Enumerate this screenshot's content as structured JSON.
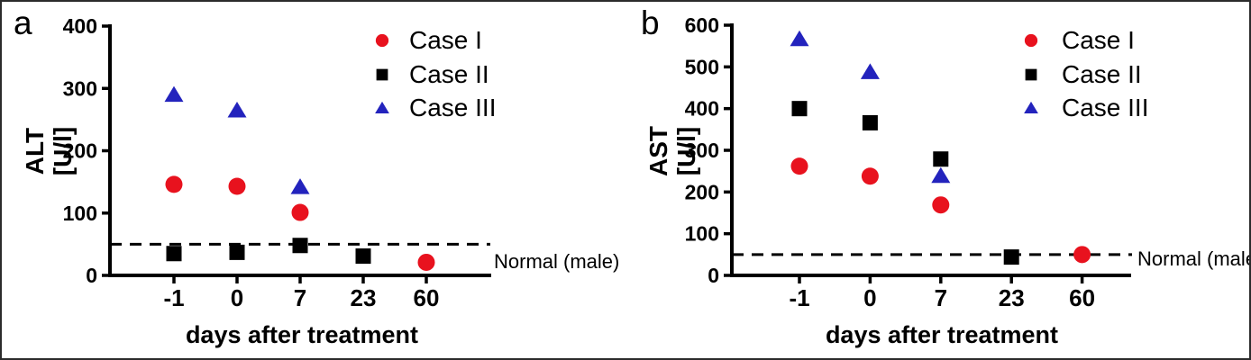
{
  "figure": {
    "background": "#ffffff",
    "border_color": "#2b2b2b"
  },
  "chart_data": [
    {
      "type": "scatter",
      "panel_label": "a",
      "ylabel": "ALT [U/l]",
      "ylabel_lines": [
        "ALT",
        "[U/l]"
      ],
      "xlabel": "days after treatment",
      "ylim": [
        0,
        400
      ],
      "yticks": [
        0,
        100,
        200,
        300,
        400
      ],
      "x_categories": [
        "-1",
        "0",
        "7",
        "23",
        "60"
      ],
      "grid": false,
      "legend_position": "top-right",
      "reference_line": {
        "value": 50,
        "style": "dashed",
        "label": "Normal (male)"
      },
      "series": [
        {
          "name": "Case I",
          "marker": "circle",
          "color": "#e8121e",
          "points": [
            {
              "x": "-1",
              "y": 146
            },
            {
              "x": "0",
              "y": 143
            },
            {
              "x": "7",
              "y": 101
            },
            {
              "x": "60",
              "y": 21
            }
          ]
        },
        {
          "name": "Case II",
          "marker": "square",
          "color": "#000000",
          "points": [
            {
              "x": "-1",
              "y": 35
            },
            {
              "x": "0",
              "y": 37
            },
            {
              "x": "7",
              "y": 48
            },
            {
              "x": "23",
              "y": 31
            }
          ]
        },
        {
          "name": "Case III",
          "marker": "triangle",
          "color": "#2323bd",
          "points": [
            {
              "x": "-1",
              "y": 290
            },
            {
              "x": "0",
              "y": 265
            },
            {
              "x": "7",
              "y": 142
            }
          ]
        }
      ]
    },
    {
      "type": "scatter",
      "panel_label": "b",
      "ylabel": "AST [U/l]",
      "ylabel_lines": [
        "AST",
        "[U/l]"
      ],
      "xlabel": "days after treatment",
      "ylim": [
        0,
        600
      ],
      "yticks": [
        0,
        100,
        200,
        300,
        400,
        500,
        600
      ],
      "x_categories": [
        "-1",
        "0",
        "7",
        "23",
        "60"
      ],
      "grid": false,
      "legend_position": "top-right",
      "reference_line": {
        "value": 50,
        "style": "dashed",
        "label": "Normal (male)"
      },
      "series": [
        {
          "name": "Case I",
          "marker": "circle",
          "color": "#e8121e",
          "points": [
            {
              "x": "-1",
              "y": 262
            },
            {
              "x": "0",
              "y": 238
            },
            {
              "x": "7",
              "y": 169
            },
            {
              "x": "60",
              "y": 50
            }
          ]
        },
        {
          "name": "Case II",
          "marker": "square",
          "color": "#000000",
          "points": [
            {
              "x": "-1",
              "y": 400
            },
            {
              "x": "0",
              "y": 366
            },
            {
              "x": "7",
              "y": 279
            },
            {
              "x": "23",
              "y": 44
            }
          ]
        },
        {
          "name": "Case III",
          "marker": "triangle",
          "color": "#2323bd",
          "points": [
            {
              "x": "-1",
              "y": 567
            },
            {
              "x": "0",
              "y": 488
            },
            {
              "x": "7",
              "y": 239
            }
          ]
        }
      ]
    }
  ]
}
